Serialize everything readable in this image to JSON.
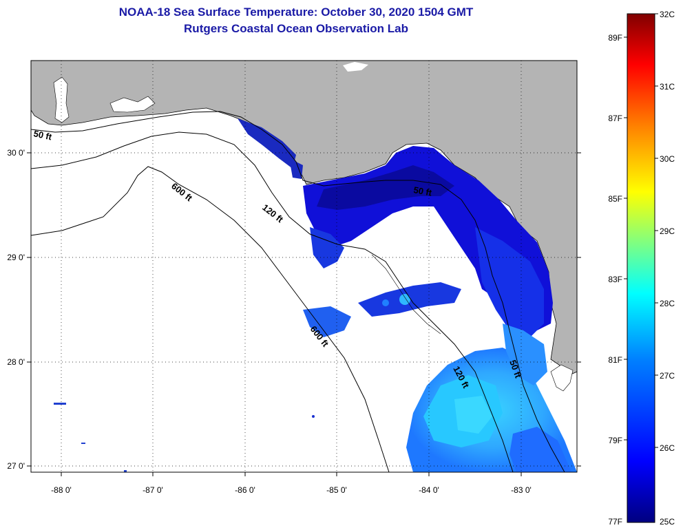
{
  "title": {
    "line1": "NOAA-18 Sea Surface Temperature:  October 30, 2020 1504 GMT",
    "line2": "Rutgers Coastal Ocean Observation Lab"
  },
  "map": {
    "lon_labels": [
      "-88 0'",
      "-87 0'",
      "-86 0'",
      "-85 0'",
      "-84 0'",
      "-83 0'"
    ],
    "lat_labels": [
      "30 0'",
      "29 0'",
      "28 0'",
      "27 0'"
    ],
    "contour_labels": {
      "c50_west": "50 ft",
      "c600_north": "600 ft",
      "c120_north": "120 ft",
      "c50_east": "50 ft",
      "c600_south": "600 ft",
      "c120_south": "120 ft",
      "c50_south": "50 ft"
    },
    "land_color": "#b4b4b4",
    "ocean_color": "#ffffff"
  },
  "colorbar": {
    "celsius_labels": [
      "32C",
      "31C",
      "30C",
      "29C",
      "28C",
      "27C",
      "26C",
      "25C"
    ],
    "fahrenheit_labels": [
      "89F",
      "87F",
      "85F",
      "83F",
      "81F",
      "79F",
      "77F"
    ],
    "colors": [
      "#000080",
      "#0000ff",
      "#0080ff",
      "#00ffff",
      "#80ff80",
      "#ffff00",
      "#ff8000",
      "#ff0000",
      "#800000"
    ]
  }
}
